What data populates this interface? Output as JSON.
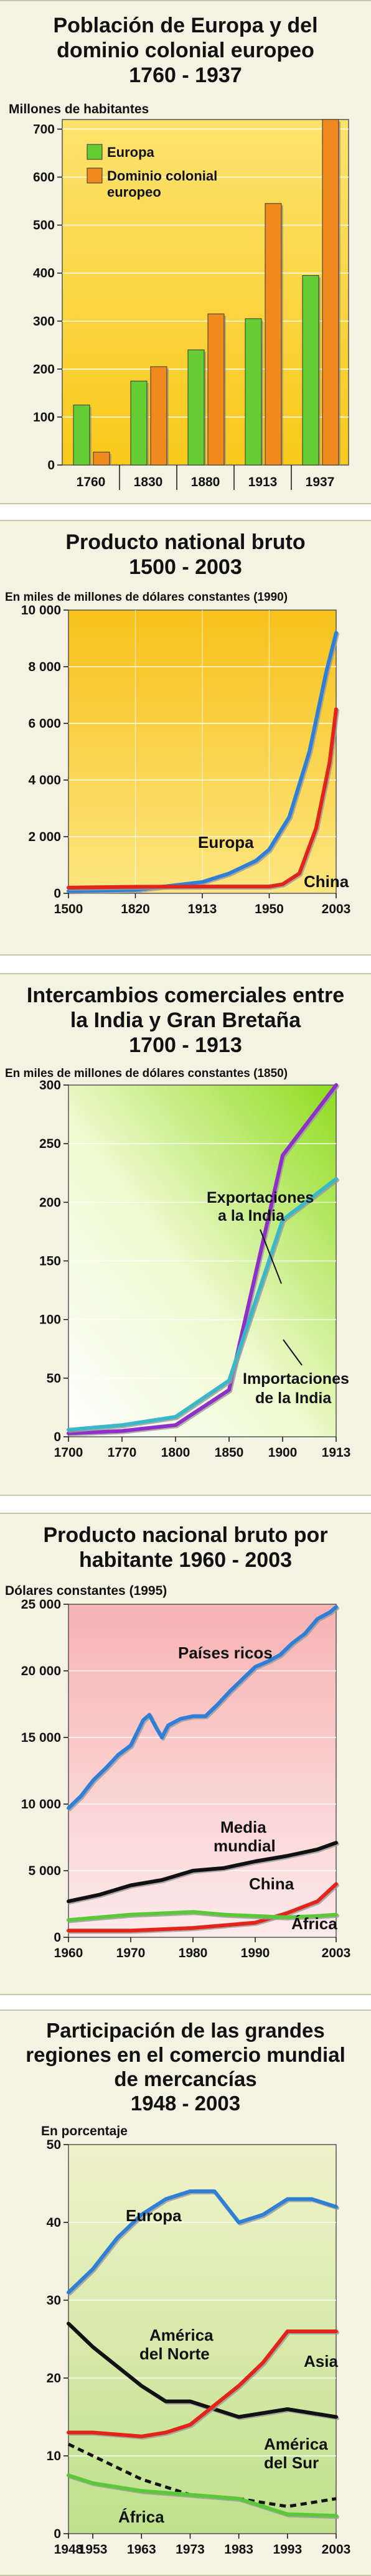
{
  "charts": {
    "c1": {
      "title_lines": [
        "Población de Europa y del",
        "dominio colonial europeo",
        "1760 - 1937"
      ],
      "unit": "Millones de habitantes",
      "legend": [
        "Europa",
        "Dominio colonial",
        "europeo"
      ]
    },
    "c2": {
      "title_lines": [
        "Producto national bruto",
        "1500 - 2003"
      ],
      "unit": "En miles de millones de dólares constantes (1990)",
      "annotations": [
        "Europa",
        "China"
      ]
    },
    "c3": {
      "title_lines": [
        "Intercambios comerciales entre",
        "la India y Gran Bretaña",
        "1700 - 1913"
      ],
      "unit": "En miles de millones de dólares constantes (1850)",
      "annotations": [
        "Exportaciones",
        "a la India",
        "Importaciones",
        "de la India"
      ]
    },
    "c4": {
      "title_lines": [
        "Producto nacional bruto por",
        "habitante 1960 - 2003"
      ],
      "unit": "Dólares constantes (1995)",
      "annotations": [
        "Países ricos",
        "Media",
        "mundial",
        "China",
        "África"
      ]
    },
    "c5": {
      "title_lines": [
        "Participación de las grandes",
        "regiones en el comercio mundial",
        "de mercancías",
        "1948 - 2003"
      ],
      "unit": "En porcentaje",
      "annotations": [
        "Europa",
        "América",
        "del Norte",
        "Asia",
        "América",
        "del Sur",
        "África"
      ]
    }
  },
  "colors": {
    "europe_green": "#66cc33",
    "colonial_orange": "#f08a1e",
    "blue_line": "#2f7fd6",
    "red_line": "#e2251b",
    "purple_line": "#8e2fc9",
    "teal_line": "#3bb8c8",
    "green_line": "#5ac83a",
    "black_line": "#111111"
  },
  "chart_data": [
    {
      "type": "bar",
      "title": "Población de Europa y del dominio colonial europeo 1760 - 1937",
      "ylabel": "Millones de habitantes",
      "categories": [
        "1760",
        "1830",
        "1880",
        "1913",
        "1937"
      ],
      "series": [
        {
          "name": "Europa",
          "values": [
            125,
            175,
            240,
            305,
            395
          ]
        },
        {
          "name": "Dominio colonial europeo",
          "values": [
            27,
            205,
            315,
            545,
            720
          ]
        }
      ],
      "ylim": [
        0,
        720
      ],
      "yticks": [
        0,
        100,
        200,
        300,
        400,
        500,
        600,
        700
      ],
      "legend_position": "top-left"
    },
    {
      "type": "line",
      "title": "Producto national bruto 1500 - 2003",
      "ylabel": "En miles de millones de dólares constantes (1990)",
      "xticks": [
        "1500",
        "1820",
        "1913",
        "1950",
        "2003"
      ],
      "ylim": [
        0,
        10000
      ],
      "yticks": [
        0,
        2000,
        4000,
        6000,
        8000,
        10000
      ],
      "ytick_labels": [
        "0",
        "2 000",
        "4 000",
        "6 000",
        "8 000",
        "10 000"
      ],
      "series": [
        {
          "name": "Europa",
          "x_position": [
            0,
            1,
            2,
            2.4,
            2.8,
            3,
            3.3,
            3.6,
            3.85,
            4
          ],
          "values": [
            80,
            120,
            400,
            700,
            1150,
            1550,
            2700,
            5000,
            7800,
            9200
          ]
        },
        {
          "name": "China",
          "x_position": [
            0,
            1,
            2,
            2.6,
            3,
            3.2,
            3.45,
            3.7,
            3.9,
            4
          ],
          "values": [
            200,
            230,
            240,
            240,
            240,
            320,
            700,
            2300,
            4600,
            6500
          ]
        }
      ]
    },
    {
      "type": "line",
      "title": "Intercambios comerciales entre la India y Gran Bretaña 1700 - 1913",
      "ylabel": "En miles de millones de dólares constantes (1850)",
      "xticks": [
        "1700",
        "1770",
        "1800",
        "1850",
        "1900",
        "1913"
      ],
      "ylim": [
        0,
        300
      ],
      "yticks": [
        0,
        50,
        100,
        150,
        200,
        250,
        300
      ],
      "series": [
        {
          "name": "Exportaciones a la India",
          "x": [
            1700,
            1770,
            1800,
            1850,
            1900,
            1913
          ],
          "values": [
            3,
            5,
            10,
            40,
            240,
            300
          ]
        },
        {
          "name": "Importaciones de la India",
          "x": [
            1700,
            1770,
            1800,
            1850,
            1900,
            1913
          ],
          "values": [
            6,
            10,
            17,
            48,
            185,
            220
          ]
        }
      ]
    },
    {
      "type": "line",
      "title": "Producto nacional bruto por habitante 1960 - 2003",
      "ylabel": "Dólares constantes (1995)",
      "xticks": [
        "1960",
        "1970",
        "1980",
        "1990",
        "2003"
      ],
      "ylim": [
        0,
        25000
      ],
      "yticks": [
        0,
        5000,
        10000,
        15000,
        20000,
        25000
      ],
      "ytick_labels": [
        "0",
        "5 000",
        "10 000",
        "15 000",
        "20 000",
        "25 000"
      ],
      "series": [
        {
          "name": "Países ricos",
          "x": [
            1960,
            1962,
            1964,
            1966,
            1968,
            1970,
            1972,
            1973,
            1974,
            1975,
            1976,
            1978,
            1980,
            1982,
            1984,
            1986,
            1988,
            1990,
            1992,
            1994,
            1996,
            1998,
            2000,
            2002,
            2003
          ],
          "values": [
            9700,
            10600,
            11800,
            12700,
            13700,
            14400,
            16300,
            16700,
            15800,
            15000,
            15900,
            16400,
            16600,
            16600,
            17500,
            18500,
            19400,
            20300,
            20700,
            21200,
            22100,
            22800,
            23900,
            24400,
            24800
          ]
        },
        {
          "name": "Media mundial",
          "x": [
            1960,
            1965,
            1970,
            1975,
            1980,
            1985,
            1990,
            1995,
            2000,
            2003
          ],
          "values": [
            2700,
            3200,
            3900,
            4300,
            5000,
            5200,
            5700,
            6100,
            6600,
            7100
          ]
        },
        {
          "name": "China",
          "x": [
            1960,
            1970,
            1980,
            1985,
            1990,
            1995,
            2000,
            2003
          ],
          "values": [
            500,
            500,
            700,
            900,
            1100,
            1800,
            2700,
            4000
          ]
        },
        {
          "name": "África",
          "x": [
            1960,
            1965,
            1970,
            1975,
            1980,
            1985,
            1990,
            1995,
            2000,
            2003
          ],
          "values": [
            1300,
            1500,
            1700,
            1800,
            1900,
            1700,
            1600,
            1500,
            1600,
            1700
          ]
        }
      ]
    },
    {
      "type": "line",
      "title": "Participación de las grandes regiones en el comercio mundial de mercancías 1948 - 2003",
      "ylabel": "En porcentaje",
      "xticks": [
        "1948",
        "1953",
        "1963",
        "1973",
        "1983",
        "1993",
        "2003"
      ],
      "ylim": [
        0,
        50
      ],
      "yticks": [
        0,
        10,
        20,
        30,
        40,
        50
      ],
      "series": [
        {
          "name": "Europa",
          "x": [
            1948,
            1953,
            1958,
            1963,
            1968,
            1973,
            1978,
            1983,
            1988,
            1993,
            1998,
            2003
          ],
          "values": [
            31,
            34,
            38,
            41,
            43,
            44,
            44,
            40,
            41,
            43,
            43,
            42
          ]
        },
        {
          "name": "América del Norte",
          "x": [
            1948,
            1953,
            1963,
            1968,
            1973,
            1983,
            1993,
            2003
          ],
          "values": [
            27,
            24,
            19,
            17,
            17,
            15,
            16,
            15
          ]
        },
        {
          "name": "Asia",
          "x": [
            1948,
            1953,
            1963,
            1968,
            1973,
            1983,
            1988,
            1993,
            2003
          ],
          "values": [
            13,
            13,
            12.5,
            13,
            14,
            19,
            22,
            26,
            26
          ]
        },
        {
          "name": "América del Sur",
          "x": [
            1948,
            1953,
            1963,
            1973,
            1983,
            1993,
            2003
          ],
          "values": [
            11.5,
            10,
            7,
            5,
            4.5,
            3.5,
            4.5
          ]
        },
        {
          "name": "África",
          "x": [
            1948,
            1953,
            1963,
            1973,
            1983,
            1993,
            2003
          ],
          "values": [
            7.5,
            6.5,
            5.5,
            5,
            4.5,
            2.5,
            2.3
          ]
        }
      ]
    }
  ]
}
